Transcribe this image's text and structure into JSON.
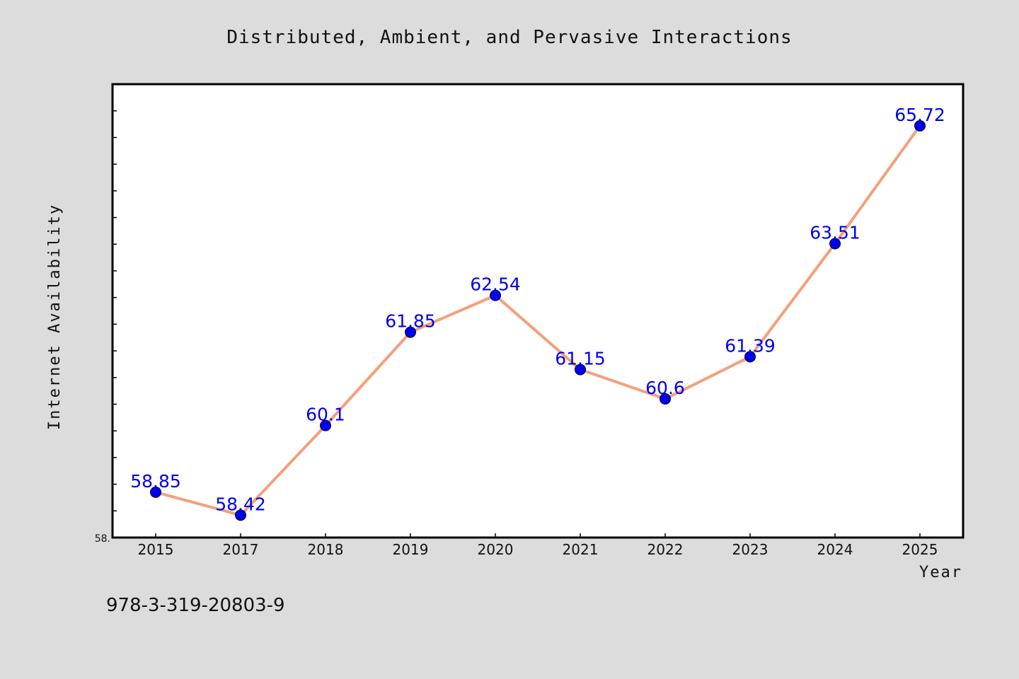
{
  "chart_data": {
    "type": "line",
    "title": "Distributed, Ambient, and Pervasive Interactions",
    "xlabel": "Year",
    "ylabel": "Internet Availability",
    "categories": [
      "2015",
      "2017",
      "2018",
      "2019",
      "2020",
      "2021",
      "2022",
      "2023",
      "2024",
      "2025"
    ],
    "series": [
      {
        "values": [
          58.85,
          58.42,
          60.1,
          61.85,
          62.54,
          61.15,
          60.6,
          61.39,
          63.51,
          65.72
        ]
      }
    ],
    "data_labels": [
      "58.85",
      "58.42",
      "60.1",
      "61.85",
      "62.54",
      "61.15",
      "60.6",
      "61.39",
      "63.51",
      "65.72"
    ],
    "ylim": [
      58,
      66.5
    ],
    "ytick_label": "58.",
    "grid": false,
    "line_color": "#f4a07a",
    "marker_color": "#0000ee",
    "background_color": "#dcdcdc"
  },
  "footer": {
    "text": "978-3-319-20803-9"
  }
}
